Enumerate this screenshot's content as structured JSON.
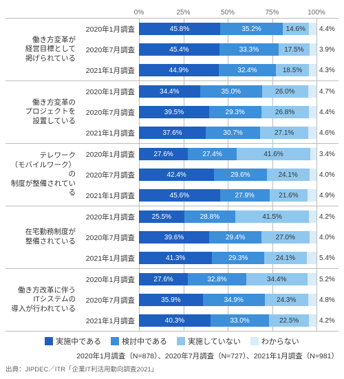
{
  "chart": {
    "type": "stacked-bar-horizontal",
    "axis": {
      "min": 0,
      "max": 100,
      "ticks": [
        0,
        25,
        50,
        75,
        100
      ],
      "suffix": "%"
    },
    "colors": [
      "#1f5fbf",
      "#3d8fd9",
      "#8fc7ee",
      "#d9ecf8"
    ],
    "legend": [
      "実施中である",
      "検討中である",
      "実施していない",
      "わからない"
    ],
    "groups": [
      {
        "label": "働き方変革が\n経営目標として\n掲げられている",
        "rows": [
          {
            "label": "2020年1月調査",
            "values": [
              45.8,
              35.2,
              14.6,
              4.4
            ]
          },
          {
            "label": "2020年7月調査",
            "values": [
              45.4,
              33.3,
              17.5,
              3.9
            ]
          },
          {
            "label": "2021年1月調査",
            "values": [
              44.9,
              32.4,
              18.5,
              4.3
            ]
          }
        ]
      },
      {
        "label": "働き方変革の\nプロジェクトを\n設置している",
        "rows": [
          {
            "label": "2020年1月調査",
            "values": [
              34.4,
              35.0,
              26.0,
              4.7
            ]
          },
          {
            "label": "2020年7月調査",
            "values": [
              39.5,
              29.3,
              26.8,
              4.4
            ]
          },
          {
            "label": "2021年1月調査",
            "values": [
              37.6,
              30.7,
              27.1,
              4.6
            ]
          }
        ]
      },
      {
        "label": "テレワーク\n（モバイルワーク）の\n制度が整備されている",
        "rows": [
          {
            "label": "2020年1月調査",
            "values": [
              27.6,
              27.4,
              41.6,
              3.4
            ]
          },
          {
            "label": "2020年7月調査",
            "values": [
              42.4,
              29.6,
              24.1,
              4.0
            ]
          },
          {
            "label": "2021年1月調査",
            "values": [
              45.6,
              27.9,
              21.6,
              4.9
            ]
          }
        ]
      },
      {
        "label": "在宅勤務制度が\n整備されている",
        "rows": [
          {
            "label": "2020年1月調査",
            "values": [
              25.5,
              28.8,
              41.5,
              4.2
            ]
          },
          {
            "label": "2020年7月調査",
            "values": [
              39.6,
              29.4,
              27.0,
              4.0
            ]
          },
          {
            "label": "2021年1月調査",
            "values": [
              41.3,
              29.3,
              24.1,
              5.4
            ]
          }
        ]
      },
      {
        "label": "働き方改革に伴う\nITシステムの\n導入が行われている",
        "rows": [
          {
            "label": "2020年1月調査",
            "values": [
              27.6,
              32.8,
              34.4,
              5.2
            ]
          },
          {
            "label": "2020年7月調査",
            "values": [
              35.9,
              34.9,
              24.3,
              4.8
            ]
          },
          {
            "label": "2021年1月調査",
            "values": [
              40.3,
              33.0,
              22.5,
              4.2
            ]
          }
        ]
      }
    ],
    "footnote": "2020年1月調査（N=878）、2020年7月調査（N=727）、2021年1月調査（N=981）",
    "source": "出典：JIPDEC／ITR「企業IT利活用動向調査2021」"
  }
}
